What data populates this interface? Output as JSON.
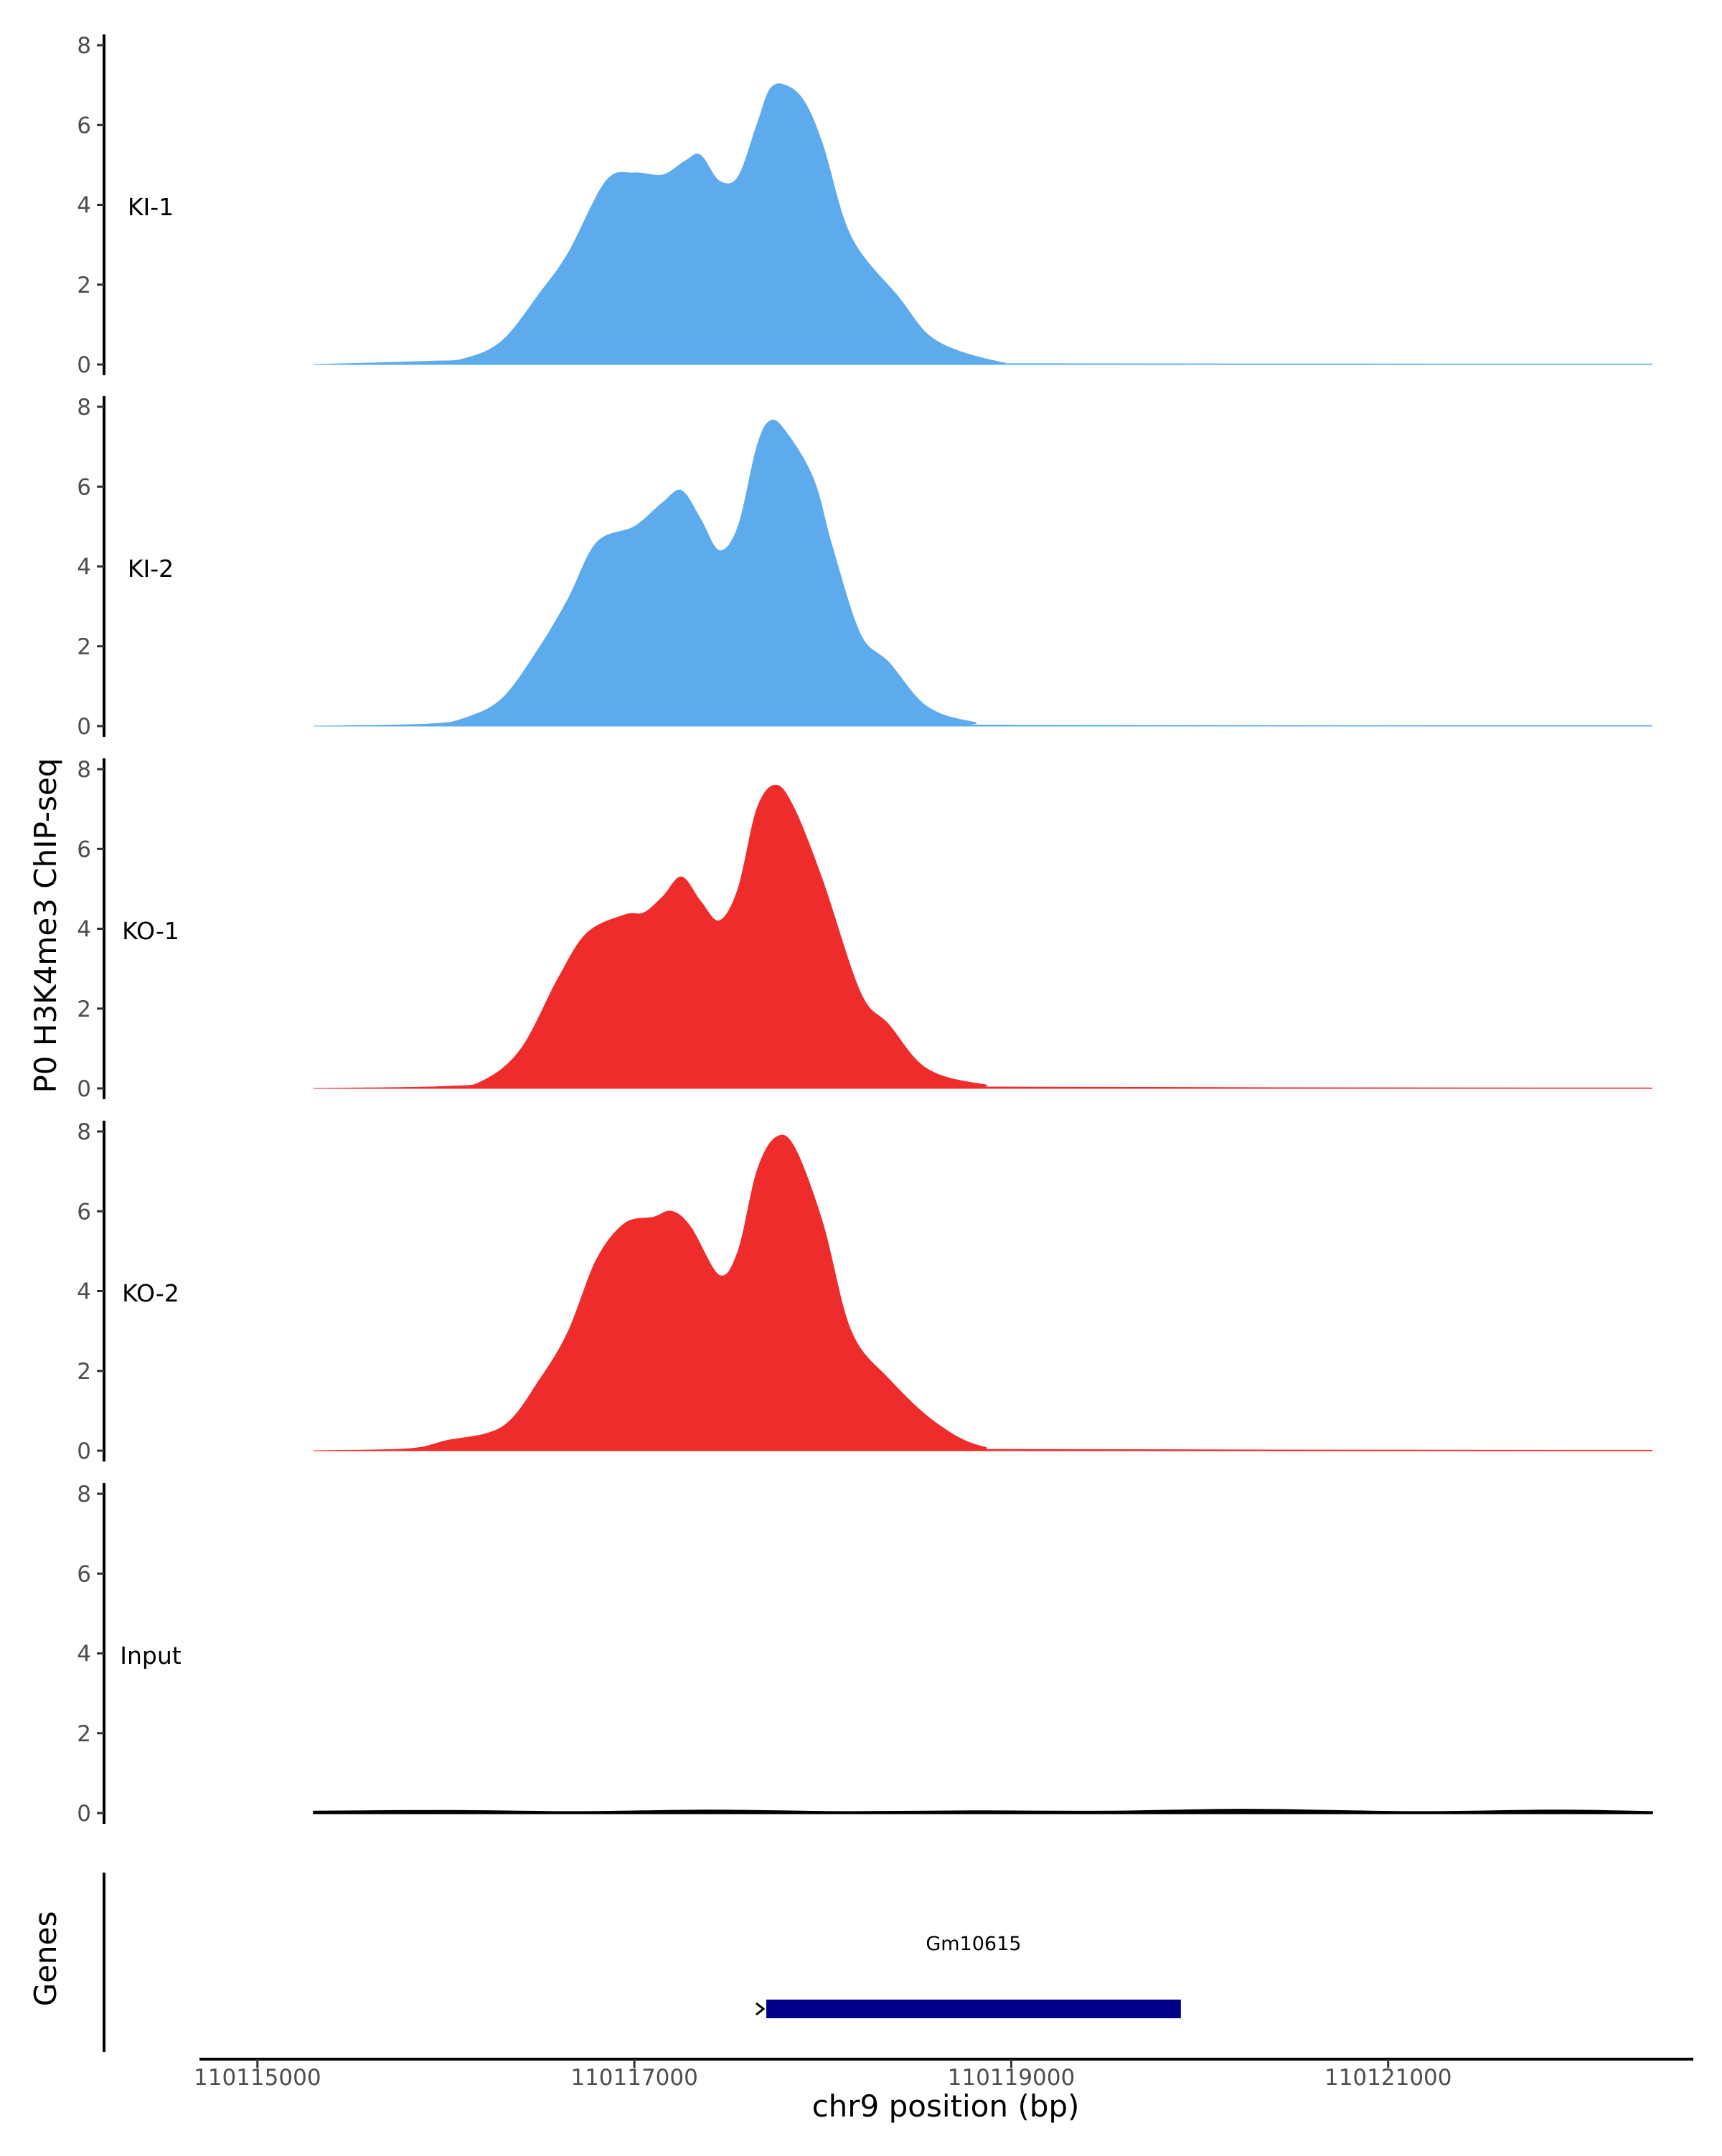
{
  "chart_data": {
    "type": "area",
    "ylabel": "P0 H3K4me3 ChIP-seq",
    "xlabel": "chr9 position (bp)",
    "xlim": [
      110114700,
      110122600
    ],
    "ylim": [
      0,
      8
    ],
    "yticks": [
      0,
      2,
      4,
      6,
      8
    ],
    "xticks": [
      110115000,
      110117000,
      110119000,
      110121000
    ],
    "xtick_labels": [
      "110115000",
      "110117000",
      "110119000",
      "110121000"
    ],
    "grid": false,
    "legend": "none",
    "tracks": [
      {
        "label": "KI-1",
        "color": "#5DABED",
        "points": [
          [
            110115300,
            0
          ],
          [
            110115900,
            0.08
          ],
          [
            110116100,
            0.15
          ],
          [
            110116300,
            0.6
          ],
          [
            110116500,
            1.8
          ],
          [
            110116650,
            2.8
          ],
          [
            110116850,
            4.6
          ],
          [
            110117000,
            4.8
          ],
          [
            110117150,
            4.75
          ],
          [
            110117270,
            5.1
          ],
          [
            110117350,
            5.25
          ],
          [
            110117450,
            4.6
          ],
          [
            110117550,
            4.7
          ],
          [
            110117650,
            6.0
          ],
          [
            110117720,
            6.9
          ],
          [
            110117800,
            7.0
          ],
          [
            110117900,
            6.6
          ],
          [
            110118000,
            5.5
          ],
          [
            110118150,
            3.2
          ],
          [
            110118400,
            1.7
          ],
          [
            110118600,
            0.6
          ],
          [
            110118950,
            0.05
          ],
          [
            110119200,
            0.02
          ],
          [
            110122400,
            0.01
          ]
        ]
      },
      {
        "label": "KI-2",
        "color": "#5DABED",
        "points": [
          [
            110115300,
            0
          ],
          [
            110115900,
            0.05
          ],
          [
            110116100,
            0.2
          ],
          [
            110116300,
            0.7
          ],
          [
            110116500,
            2.0
          ],
          [
            110116650,
            3.2
          ],
          [
            110116800,
            4.6
          ],
          [
            110117000,
            5.0
          ],
          [
            110117150,
            5.6
          ],
          [
            110117250,
            5.9
          ],
          [
            110117350,
            5.2
          ],
          [
            110117450,
            4.4
          ],
          [
            110117550,
            5.0
          ],
          [
            110117650,
            7.0
          ],
          [
            110117720,
            7.65
          ],
          [
            110117800,
            7.4
          ],
          [
            110117950,
            6.2
          ],
          [
            110118050,
            4.5
          ],
          [
            110118200,
            2.3
          ],
          [
            110118350,
            1.6
          ],
          [
            110118550,
            0.5
          ],
          [
            110118800,
            0.1
          ],
          [
            110119100,
            0.02
          ],
          [
            110122400,
            0.01
          ]
        ]
      },
      {
        "label": "KO-1",
        "color": "#EE2C2C",
        "points": [
          [
            110115300,
            0
          ],
          [
            110116000,
            0.05
          ],
          [
            110116200,
            0.2
          ],
          [
            110116400,
            1.0
          ],
          [
            110116600,
            2.8
          ],
          [
            110116750,
            3.9
          ],
          [
            110116950,
            4.35
          ],
          [
            110117050,
            4.4
          ],
          [
            110117150,
            4.8
          ],
          [
            110117250,
            5.3
          ],
          [
            110117350,
            4.7
          ],
          [
            110117450,
            4.2
          ],
          [
            110117550,
            5.0
          ],
          [
            110117650,
            7.0
          ],
          [
            110117750,
            7.6
          ],
          [
            110117850,
            7.0
          ],
          [
            110118000,
            5.2
          ],
          [
            110118200,
            2.4
          ],
          [
            110118350,
            1.6
          ],
          [
            110118550,
            0.5
          ],
          [
            110118850,
            0.1
          ],
          [
            110119200,
            0.03
          ],
          [
            110122400,
            0.01
          ]
        ]
      },
      {
        "label": "KO-2",
        "color": "#EE2C2C",
        "points": [
          [
            110115300,
            0
          ],
          [
            110115800,
            0.05
          ],
          [
            110116000,
            0.25
          ],
          [
            110116300,
            0.6
          ],
          [
            110116500,
            1.8
          ],
          [
            110116650,
            3.0
          ],
          [
            110116800,
            4.8
          ],
          [
            110116950,
            5.7
          ],
          [
            110117100,
            5.85
          ],
          [
            110117200,
            6.0
          ],
          [
            110117300,
            5.6
          ],
          [
            110117450,
            4.4
          ],
          [
            110117550,
            5.0
          ],
          [
            110117650,
            7.0
          ],
          [
            110117750,
            7.85
          ],
          [
            110117850,
            7.6
          ],
          [
            110118000,
            5.7
          ],
          [
            110118150,
            3.0
          ],
          [
            110118350,
            1.8
          ],
          [
            110118600,
            0.7
          ],
          [
            110118850,
            0.1
          ],
          [
            110119200,
            0.03
          ],
          [
            110122400,
            0.01
          ]
        ]
      },
      {
        "label": "Input",
        "color": "#000000",
        "points": [
          [
            110115300,
            0.03
          ],
          [
            110116000,
            0.05
          ],
          [
            110116700,
            0.02
          ],
          [
            110117400,
            0.06
          ],
          [
            110118100,
            0.02
          ],
          [
            110118800,
            0.04
          ],
          [
            110119500,
            0.03
          ],
          [
            110120200,
            0.08
          ],
          [
            110120700,
            0.05
          ],
          [
            110121200,
            0.02
          ],
          [
            110121900,
            0.06
          ],
          [
            110122400,
            0.02
          ]
        ]
      }
    ],
    "genes_track": {
      "label": "Genes",
      "genes": [
        {
          "name": "Gm10615",
          "start": 110117700,
          "end": 110119900,
          "color": "#00008B"
        }
      ]
    }
  }
}
